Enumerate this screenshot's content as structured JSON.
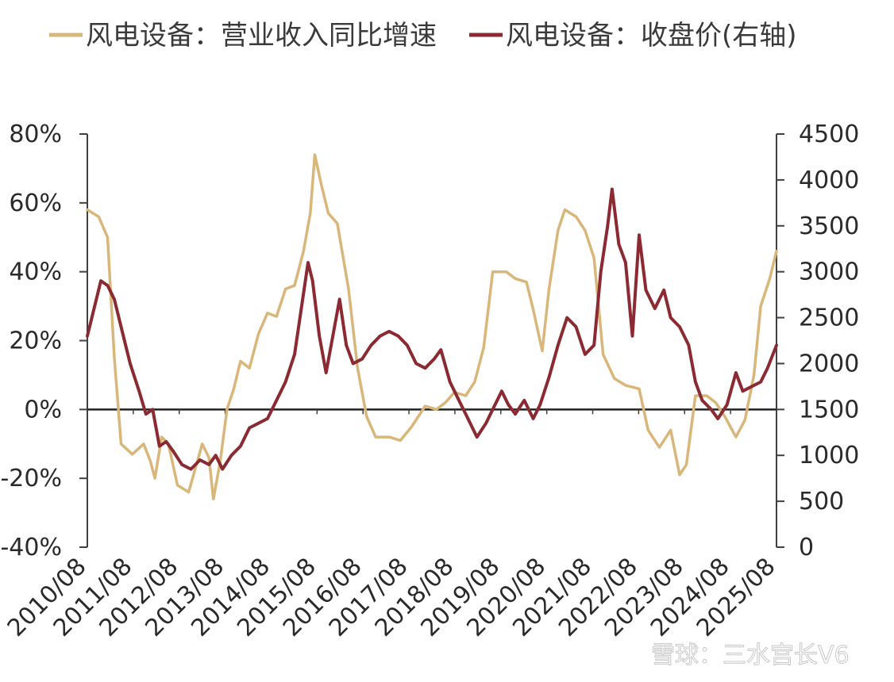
{
  "chart_data": {
    "type": "line",
    "legend": {
      "position": "top"
    },
    "colors": {
      "revenue_growth": "#D9B67A",
      "close_price": "#8B2A33",
      "axis": "#404040"
    },
    "x_ticks": [
      "2010/08",
      "2011/08",
      "2012/08",
      "2013/08",
      "2014/08",
      "2015/08",
      "2016/08",
      "2017/08",
      "2018/08",
      "2019/08",
      "2020/08",
      "2021/08",
      "2022/08",
      "2023/08",
      "2024/08",
      "2025/08"
    ],
    "y_left": {
      "ticks": [
        "80%",
        "60%",
        "40%",
        "20%",
        "0%",
        "-20%",
        "-40%"
      ],
      "range": [
        -40,
        80
      ]
    },
    "y_right": {
      "ticks": [
        "4500",
        "4000",
        "3500",
        "3000",
        "2500",
        "2000",
        "1500",
        "1000",
        "500",
        "0"
      ],
      "range": [
        0,
        4500
      ]
    },
    "series": [
      {
        "name": "风电设备：营业收入同比增速",
        "axis": "left",
        "points": [
          [
            2010.6,
            58
          ],
          [
            2010.85,
            56
          ],
          [
            2011.05,
            50
          ],
          [
            2011.2,
            15
          ],
          [
            2011.35,
            -10
          ],
          [
            2011.6,
            -13
          ],
          [
            2011.85,
            -10
          ],
          [
            2012.0,
            -15
          ],
          [
            2012.1,
            -20
          ],
          [
            2012.25,
            -8
          ],
          [
            2012.4,
            -10
          ],
          [
            2012.6,
            -22
          ],
          [
            2012.85,
            -24
          ],
          [
            2013.0,
            -17
          ],
          [
            2013.15,
            -10
          ],
          [
            2013.3,
            -14
          ],
          [
            2013.4,
            -26
          ],
          [
            2013.55,
            -15
          ],
          [
            2013.7,
            0
          ],
          [
            2013.85,
            6
          ],
          [
            2014.0,
            14
          ],
          [
            2014.2,
            12
          ],
          [
            2014.4,
            22
          ],
          [
            2014.6,
            28
          ],
          [
            2014.8,
            27
          ],
          [
            2015.0,
            35
          ],
          [
            2015.2,
            36
          ],
          [
            2015.4,
            46
          ],
          [
            2015.55,
            57
          ],
          [
            2015.65,
            74
          ],
          [
            2015.8,
            65
          ],
          [
            2015.95,
            57
          ],
          [
            2016.15,
            54
          ],
          [
            2016.4,
            35
          ],
          [
            2016.6,
            12
          ],
          [
            2016.8,
            -2
          ],
          [
            2017.0,
            -8
          ],
          [
            2017.3,
            -8
          ],
          [
            2017.55,
            -9
          ],
          [
            2017.8,
            -5
          ],
          [
            2018.1,
            1
          ],
          [
            2018.35,
            0
          ],
          [
            2018.55,
            2
          ],
          [
            2018.75,
            5
          ],
          [
            2019.0,
            4
          ],
          [
            2019.2,
            8
          ],
          [
            2019.4,
            18
          ],
          [
            2019.6,
            40
          ],
          [
            2019.9,
            40
          ],
          [
            2020.1,
            38
          ],
          [
            2020.35,
            37
          ],
          [
            2020.5,
            29
          ],
          [
            2020.7,
            17
          ],
          [
            2020.85,
            35
          ],
          [
            2021.05,
            52
          ],
          [
            2021.2,
            58
          ],
          [
            2021.45,
            56
          ],
          [
            2021.65,
            52
          ],
          [
            2021.85,
            44
          ],
          [
            2022.05,
            16
          ],
          [
            2022.3,
            9
          ],
          [
            2022.55,
            7
          ],
          [
            2022.85,
            6
          ],
          [
            2023.05,
            -6
          ],
          [
            2023.3,
            -11
          ],
          [
            2023.55,
            -6
          ],
          [
            2023.75,
            -19
          ],
          [
            2023.9,
            -16
          ],
          [
            2024.1,
            4
          ],
          [
            2024.35,
            4
          ],
          [
            2024.55,
            2
          ],
          [
            2024.75,
            -2
          ],
          [
            2025.0,
            -8
          ],
          [
            2025.2,
            -3
          ],
          [
            2025.4,
            10
          ],
          [
            2025.55,
            30
          ],
          [
            2025.75,
            38
          ],
          [
            2025.9,
            46
          ]
        ]
      },
      {
        "name": "风电设备：收盘价(右轴)",
        "axis": "right",
        "points": [
          [
            2010.6,
            2300
          ],
          [
            2010.75,
            2600
          ],
          [
            2010.9,
            2900
          ],
          [
            2011.05,
            2850
          ],
          [
            2011.2,
            2700
          ],
          [
            2011.35,
            2400
          ],
          [
            2011.55,
            2000
          ],
          [
            2011.75,
            1700
          ],
          [
            2011.9,
            1450
          ],
          [
            2012.05,
            1500
          ],
          [
            2012.2,
            1100
          ],
          [
            2012.35,
            1150
          ],
          [
            2012.5,
            1050
          ],
          [
            2012.7,
            900
          ],
          [
            2012.9,
            850
          ],
          [
            2013.1,
            950
          ],
          [
            2013.3,
            900
          ],
          [
            2013.45,
            1000
          ],
          [
            2013.6,
            850
          ],
          [
            2013.8,
            1000
          ],
          [
            2014.0,
            1100
          ],
          [
            2014.2,
            1300
          ],
          [
            2014.4,
            1350
          ],
          [
            2014.6,
            1400
          ],
          [
            2014.8,
            1600
          ],
          [
            2015.0,
            1800
          ],
          [
            2015.2,
            2100
          ],
          [
            2015.35,
            2600
          ],
          [
            2015.5,
            3100
          ],
          [
            2015.6,
            2900
          ],
          [
            2015.75,
            2300
          ],
          [
            2015.9,
            1900
          ],
          [
            2016.05,
            2300
          ],
          [
            2016.2,
            2700
          ],
          [
            2016.35,
            2200
          ],
          [
            2016.5,
            2000
          ],
          [
            2016.7,
            2050
          ],
          [
            2016.9,
            2200
          ],
          [
            2017.1,
            2300
          ],
          [
            2017.3,
            2350
          ],
          [
            2017.5,
            2300
          ],
          [
            2017.7,
            2200
          ],
          [
            2017.9,
            2000
          ],
          [
            2018.1,
            1950
          ],
          [
            2018.3,
            2050
          ],
          [
            2018.45,
            2150
          ],
          [
            2018.65,
            1800
          ],
          [
            2018.85,
            1600
          ],
          [
            2019.05,
            1400
          ],
          [
            2019.25,
            1200
          ],
          [
            2019.45,
            1350
          ],
          [
            2019.6,
            1500
          ],
          [
            2019.8,
            1700
          ],
          [
            2019.95,
            1550
          ],
          [
            2020.1,
            1450
          ],
          [
            2020.3,
            1600
          ],
          [
            2020.5,
            1400
          ],
          [
            2020.65,
            1550
          ],
          [
            2020.85,
            1850
          ],
          [
            2021.05,
            2200
          ],
          [
            2021.25,
            2500
          ],
          [
            2021.45,
            2400
          ],
          [
            2021.65,
            2100
          ],
          [
            2021.85,
            2200
          ],
          [
            2022.0,
            3000
          ],
          [
            2022.15,
            3500
          ],
          [
            2022.25,
            3900
          ],
          [
            2022.4,
            3300
          ],
          [
            2022.55,
            3100
          ],
          [
            2022.7,
            2300
          ],
          [
            2022.85,
            3400
          ],
          [
            2023.0,
            2800
          ],
          [
            2023.2,
            2600
          ],
          [
            2023.4,
            2800
          ],
          [
            2023.55,
            2500
          ],
          [
            2023.75,
            2400
          ],
          [
            2023.95,
            2200
          ],
          [
            2024.1,
            1800
          ],
          [
            2024.25,
            1600
          ],
          [
            2024.45,
            1500
          ],
          [
            2024.6,
            1400
          ],
          [
            2024.8,
            1550
          ],
          [
            2025.0,
            1900
          ],
          [
            2025.15,
            1700
          ],
          [
            2025.35,
            1750
          ],
          [
            2025.55,
            1800
          ],
          [
            2025.7,
            1950
          ],
          [
            2025.9,
            2200
          ]
        ]
      }
    ]
  },
  "watermark": {
    "text": "雪球：三水宫长V6"
  }
}
